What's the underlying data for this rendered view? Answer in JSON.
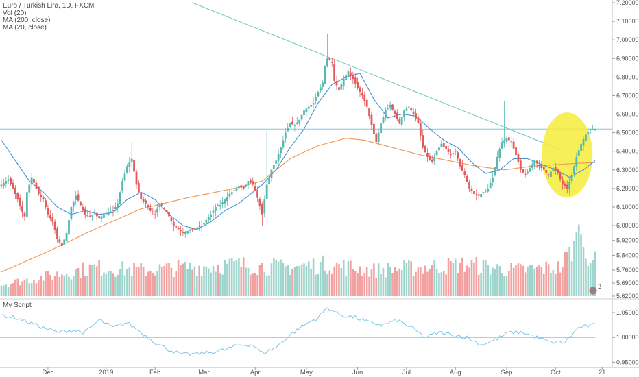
{
  "legend": {
    "title": "Euro / Turkish Lira, 1D, FXCM",
    "vol": "Vol (20)",
    "ma200": "MA (200, close)",
    "ma20": "MA (20, close)"
  },
  "oscillator_legend": "My Script",
  "badge_count": "2",
  "colors": {
    "up": "#56b8ae",
    "down": "#e25a5a",
    "vol_up": "#9fd4cd",
    "vol_down": "#f3a0a0",
    "ma200": "#f39a55",
    "ma20": "#3f8fd6",
    "trendline": "#66c8c0",
    "horizontal": "#7fc9d9",
    "highlight": "#f5ec3a",
    "oscillator": "#7cc6e8"
  },
  "chart_data": [
    {
      "type": "candlestick",
      "title": "Euro / Turkish Lira, 1D, FXCM",
      "y_ticks": [
        "7.20000",
        "7.10000",
        "7.00000",
        "6.90000",
        "6.80000",
        "6.70000",
        "6.60000",
        "6.50000",
        "6.40000",
        "6.30000",
        "6.20000",
        "6.10000",
        "6.00000",
        "5.92000",
        "5.84000",
        "5.76000",
        "5.69000",
        "5.62000"
      ],
      "x_ticks": [
        "Dec",
        "2019",
        "Feb",
        "Mar",
        "Apr",
        "May",
        "Jun",
        "Jul",
        "Aug",
        "Sep",
        "Oct",
        "21"
      ],
      "price_range": [
        5.62,
        7.2
      ],
      "horizontal_level": 6.52,
      "trendline": {
        "from": 7.2,
        "to": 6.41
      },
      "highlight_ellipse": {
        "center_price": 6.38
      },
      "close_path": [
        [
          0,
          6.22
        ],
        [
          3,
          6.25
        ],
        [
          5,
          6.2
        ],
        [
          7,
          6.14
        ],
        [
          9,
          6.07
        ],
        [
          10,
          6.05
        ],
        [
          11,
          6.18
        ],
        [
          13,
          6.26
        ],
        [
          16,
          6.17
        ],
        [
          18,
          6.14
        ],
        [
          20,
          6.06
        ],
        [
          22,
          6.02
        ],
        [
          24,
          5.93
        ],
        [
          26,
          5.89
        ],
        [
          28,
          5.96
        ],
        [
          30,
          6.1
        ],
        [
          32,
          6.16
        ],
        [
          34,
          6.11
        ],
        [
          36,
          6.06
        ],
        [
          38,
          6.05
        ],
        [
          40,
          6.06
        ],
        [
          42,
          6.04
        ],
        [
          44,
          6.06
        ],
        [
          46,
          6.07
        ],
        [
          48,
          6.08
        ],
        [
          50,
          6.12
        ],
        [
          52,
          6.24
        ],
        [
          54,
          6.32
        ],
        [
          56,
          6.36
        ],
        [
          58,
          6.22
        ],
        [
          60,
          6.14
        ],
        [
          62,
          6.12
        ],
        [
          64,
          6.08
        ],
        [
          66,
          6.06
        ],
        [
          68,
          6.12
        ],
        [
          70,
          6.09
        ],
        [
          72,
          6.05
        ],
        [
          74,
          6.0
        ],
        [
          76,
          5.98
        ],
        [
          78,
          5.96
        ],
        [
          80,
          5.97
        ],
        [
          82,
          5.98
        ],
        [
          84,
          5.99
        ],
        [
          86,
          6.0
        ],
        [
          88,
          6.03
        ],
        [
          90,
          6.06
        ],
        [
          92,
          6.1
        ],
        [
          94,
          6.11
        ],
        [
          96,
          6.14
        ],
        [
          98,
          6.17
        ],
        [
          100,
          6.19
        ],
        [
          102,
          6.21
        ],
        [
          104,
          6.2
        ],
        [
          106,
          6.24
        ],
        [
          108,
          6.22
        ],
        [
          110,
          6.15
        ],
        [
          112,
          6.06
        ],
        [
          113,
          6.14
        ],
        [
          114,
          6.22
        ],
        [
          116,
          6.3
        ],
        [
          118,
          6.35
        ],
        [
          120,
          6.42
        ],
        [
          122,
          6.5
        ],
        [
          124,
          6.55
        ],
        [
          126,
          6.54
        ],
        [
          128,
          6.57
        ],
        [
          130,
          6.62
        ],
        [
          132,
          6.64
        ],
        [
          134,
          6.66
        ],
        [
          136,
          6.72
        ],
        [
          138,
          6.77
        ],
        [
          139,
          6.86
        ],
        [
          140,
          6.9
        ],
        [
          142,
          6.88
        ],
        [
          143,
          6.78
        ],
        [
          145,
          6.73
        ],
        [
          147,
          6.79
        ],
        [
          149,
          6.83
        ],
        [
          151,
          6.79
        ],
        [
          153,
          6.74
        ],
        [
          155,
          6.7
        ],
        [
          157,
          6.64
        ],
        [
          159,
          6.54
        ],
        [
          161,
          6.45
        ],
        [
          163,
          6.55
        ],
        [
          165,
          6.62
        ],
        [
          167,
          6.65
        ],
        [
          169,
          6.6
        ],
        [
          171,
          6.55
        ],
        [
          173,
          6.62
        ],
        [
          175,
          6.64
        ],
        [
          177,
          6.6
        ],
        [
          179,
          6.55
        ],
        [
          181,
          6.42
        ],
        [
          183,
          6.37
        ],
        [
          185,
          6.34
        ],
        [
          187,
          6.4
        ],
        [
          189,
          6.44
        ],
        [
          191,
          6.41
        ],
        [
          193,
          6.38
        ],
        [
          195,
          6.4
        ],
        [
          197,
          6.32
        ],
        [
          199,
          6.27
        ],
        [
          201,
          6.2
        ],
        [
          203,
          6.17
        ],
        [
          205,
          6.16
        ],
        [
          207,
          6.18
        ],
        [
          209,
          6.2
        ],
        [
          211,
          6.26
        ],
        [
          213,
          6.37
        ],
        [
          215,
          6.45
        ],
        [
          217,
          6.47
        ],
        [
          219,
          6.45
        ],
        [
          221,
          6.38
        ],
        [
          223,
          6.3
        ],
        [
          225,
          6.27
        ],
        [
          227,
          6.31
        ],
        [
          229,
          6.35
        ],
        [
          231,
          6.32
        ],
        [
          233,
          6.3
        ],
        [
          235,
          6.27
        ],
        [
          237,
          6.31
        ],
        [
          239,
          6.28
        ],
        [
          241,
          6.22
        ],
        [
          243,
          6.2
        ],
        [
          245,
          6.27
        ],
        [
          247,
          6.37
        ],
        [
          249,
          6.44
        ],
        [
          251,
          6.49
        ],
        [
          253,
          6.52
        ],
        [
          255,
          6.52
        ]
      ],
      "ma20_path": [
        [
          0,
          6.46
        ],
        [
          6,
          6.35
        ],
        [
          12,
          6.24
        ],
        [
          18,
          6.18
        ],
        [
          24,
          6.1
        ],
        [
          30,
          6.06
        ],
        [
          36,
          6.08
        ],
        [
          42,
          6.06
        ],
        [
          48,
          6.07
        ],
        [
          54,
          6.14
        ],
        [
          60,
          6.18
        ],
        [
          66,
          6.14
        ],
        [
          72,
          6.06
        ],
        [
          78,
          6.0
        ],
        [
          84,
          5.98
        ],
        [
          90,
          6.02
        ],
        [
          96,
          6.08
        ],
        [
          102,
          6.12
        ],
        [
          108,
          6.18
        ],
        [
          112,
          6.22
        ],
        [
          118,
          6.3
        ],
        [
          124,
          6.42
        ],
        [
          130,
          6.52
        ],
        [
          136,
          6.66
        ],
        [
          142,
          6.76
        ],
        [
          148,
          6.8
        ],
        [
          154,
          6.82
        ],
        [
          160,
          6.68
        ],
        [
          166,
          6.58
        ],
        [
          172,
          6.6
        ],
        [
          178,
          6.59
        ],
        [
          184,
          6.52
        ],
        [
          190,
          6.46
        ],
        [
          196,
          6.42
        ],
        [
          202,
          6.34
        ],
        [
          208,
          6.28
        ],
        [
          214,
          6.3
        ],
        [
          220,
          6.36
        ],
        [
          226,
          6.36
        ],
        [
          232,
          6.33
        ],
        [
          238,
          6.3
        ],
        [
          244,
          6.26
        ],
        [
          250,
          6.3
        ],
        [
          255,
          6.35
        ]
      ],
      "ma200_path": [
        [
          0,
          5.75
        ],
        [
          20,
          5.86
        ],
        [
          40,
          5.98
        ],
        [
          60,
          6.09
        ],
        [
          80,
          6.15
        ],
        [
          100,
          6.2
        ],
        [
          112,
          6.24
        ],
        [
          124,
          6.36
        ],
        [
          136,
          6.43
        ],
        [
          148,
          6.47
        ],
        [
          156,
          6.46
        ],
        [
          168,
          6.42
        ],
        [
          180,
          6.38
        ],
        [
          192,
          6.35
        ],
        [
          204,
          6.32
        ],
        [
          216,
          6.3
        ],
        [
          228,
          6.32
        ],
        [
          240,
          6.33
        ],
        [
          255,
          6.34
        ]
      ],
      "volume_profile": [
        [
          0,
          0.2
        ],
        [
          20,
          0.35
        ],
        [
          40,
          0.5
        ],
        [
          60,
          0.45
        ],
        [
          80,
          0.5
        ],
        [
          100,
          0.55
        ],
        [
          120,
          0.5
        ],
        [
          140,
          0.55
        ],
        [
          160,
          0.45
        ],
        [
          180,
          0.5
        ],
        [
          200,
          0.55
        ],
        [
          220,
          0.45
        ],
        [
          240,
          0.5
        ],
        [
          248,
          1.0
        ],
        [
          252,
          0.75
        ],
        [
          255,
          0.6
        ]
      ]
    },
    {
      "type": "line",
      "title": "My Script",
      "y_ticks": [
        "1.05000",
        "1.00000",
        "0.95000"
      ],
      "y_range": [
        0.945,
        1.075
      ],
      "baseline": 1.0,
      "x_ticks": [
        "Dec",
        "2019",
        "Feb",
        "Mar",
        "Apr",
        "May",
        "Jun",
        "Jul",
        "Aug",
        "Sep",
        "Oct",
        "21"
      ],
      "path": [
        [
          0,
          1.045
        ],
        [
          6,
          1.04
        ],
        [
          12,
          1.03
        ],
        [
          18,
          1.02
        ],
        [
          24,
          1.01
        ],
        [
          30,
          1.015
        ],
        [
          36,
          1.01
        ],
        [
          42,
          1.035
        ],
        [
          48,
          1.02
        ],
        [
          54,
          1.03
        ],
        [
          60,
          1.01
        ],
        [
          66,
          0.99
        ],
        [
          72,
          0.975
        ],
        [
          78,
          0.965
        ],
        [
          84,
          0.967
        ],
        [
          90,
          0.97
        ],
        [
          96,
          0.975
        ],
        [
          102,
          0.985
        ],
        [
          108,
          0.985
        ],
        [
          112,
          0.968
        ],
        [
          118,
          0.98
        ],
        [
          124,
          1.005
        ],
        [
          130,
          1.025
        ],
        [
          136,
          1.04
        ],
        [
          140,
          1.06
        ],
        [
          146,
          1.045
        ],
        [
          152,
          1.04
        ],
        [
          158,
          1.03
        ],
        [
          164,
          1.025
        ],
        [
          170,
          1.035
        ],
        [
          176,
          1.02
        ],
        [
          182,
          1.0
        ],
        [
          188,
          1.01
        ],
        [
          194,
          1.005
        ],
        [
          200,
          1.0
        ],
        [
          206,
          0.985
        ],
        [
          212,
          0.995
        ],
        [
          218,
          1.01
        ],
        [
          224,
          1.01
        ],
        [
          230,
          1.0
        ],
        [
          236,
          0.99
        ],
        [
          242,
          0.99
        ],
        [
          248,
          1.02
        ],
        [
          255,
          1.025
        ]
      ]
    }
  ]
}
